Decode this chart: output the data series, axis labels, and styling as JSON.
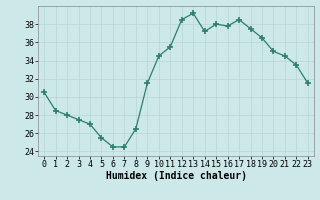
{
  "x": [
    0,
    1,
    2,
    3,
    4,
    5,
    6,
    7,
    8,
    9,
    10,
    11,
    12,
    13,
    14,
    15,
    16,
    17,
    18,
    19,
    20,
    21,
    22,
    23
  ],
  "y": [
    30.5,
    28.5,
    28.0,
    27.5,
    27.0,
    25.5,
    24.5,
    24.5,
    26.5,
    31.5,
    34.5,
    35.5,
    38.5,
    39.2,
    37.2,
    38.0,
    37.8,
    38.5,
    37.5,
    36.5,
    35.0,
    34.5,
    33.5,
    31.5
  ],
  "line_color": "#2e7d6e",
  "marker": "+",
  "marker_size": 4,
  "bg_color": "#cce8e8",
  "grid_color": "#b8d4d4",
  "xlabel": "Humidex (Indice chaleur)",
  "ylim": [
    23.5,
    40
  ],
  "xlim": [
    -0.5,
    23.5
  ],
  "yticks": [
    24,
    26,
    28,
    30,
    32,
    34,
    36,
    38
  ],
  "xticks": [
    0,
    1,
    2,
    3,
    4,
    5,
    6,
    7,
    8,
    9,
    10,
    11,
    12,
    13,
    14,
    15,
    16,
    17,
    18,
    19,
    20,
    21,
    22,
    23
  ],
  "label_fontsize": 7,
  "tick_fontsize": 6
}
